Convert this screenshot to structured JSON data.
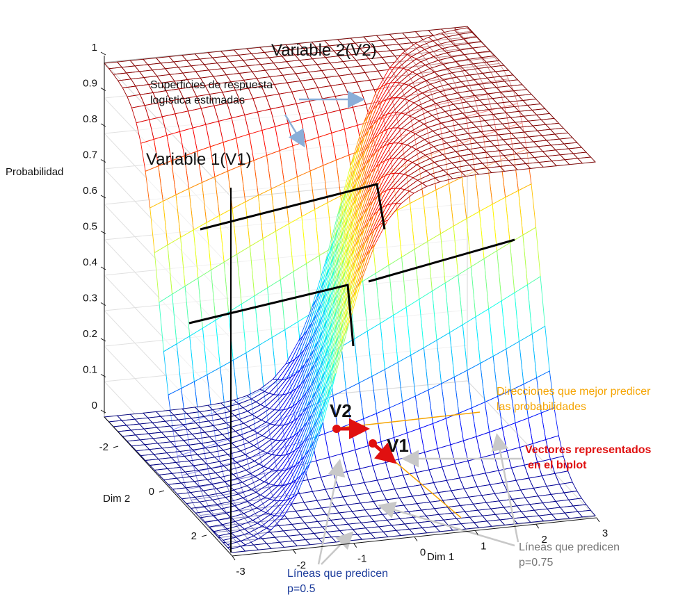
{
  "chart_data": {
    "type": "surface3d",
    "title": "",
    "zlabel": "Probabilidad",
    "xlabel": "Dim 1",
    "ylabel": "Dim 2",
    "zticks": [
      "0",
      "0.1",
      "0.2",
      "0.3",
      "0.4",
      "0.5",
      "0.6",
      "0.7",
      "0.8",
      "0.9",
      "1"
    ],
    "xticks": [
      "-3",
      "-2",
      "-1",
      "0",
      "1",
      "2",
      "3"
    ],
    "yticks": [
      "-2",
      "0",
      "2"
    ],
    "zlim": [
      0,
      1
    ],
    "xlim": [
      -3,
      3
    ],
    "ylim": [
      -3,
      3
    ],
    "surfaces": [
      {
        "name": "Variable 1(V1)",
        "model": "logistic",
        "function": "p = 1/(1+exp(-k*(u-c)))"
      },
      {
        "name": "Variable 2(V2)",
        "model": "logistic",
        "function": "p = 1/(1+exp(-k*(u-c)))"
      }
    ],
    "prediction_levels": [
      0.5,
      0.75
    ],
    "vectors": [
      {
        "name": "V1",
        "color": "#e01010"
      },
      {
        "name": "V2",
        "color": "#e01010"
      }
    ]
  },
  "labels": {
    "variable2": "Variable 2(V2)",
    "variable1": "Variable 1(V1)",
    "surfaces_line1": "Superficies de respuesta",
    "surfaces_line2": "logística estimadas",
    "directions_line1": "Direcciones que mejor predicer",
    "directions_line2": "las probabilidades",
    "vectors_line1": "Vectores  representados",
    "vectors_line2": "en el biplot",
    "lines075_line1": "Líneas que predicen",
    "lines075_line2": "p=0.75",
    "lines05_line1": "Líneas que predicen",
    "lines05_line2": "p=0.5",
    "v1": "V1",
    "v2": "V2"
  },
  "colors": {
    "orange": "#f5a400",
    "red": "#e01010",
    "gray_arrow": "#c8c8c8",
    "blue_arrow": "#8aaed8",
    "blue_text": "#1a3a9a"
  }
}
